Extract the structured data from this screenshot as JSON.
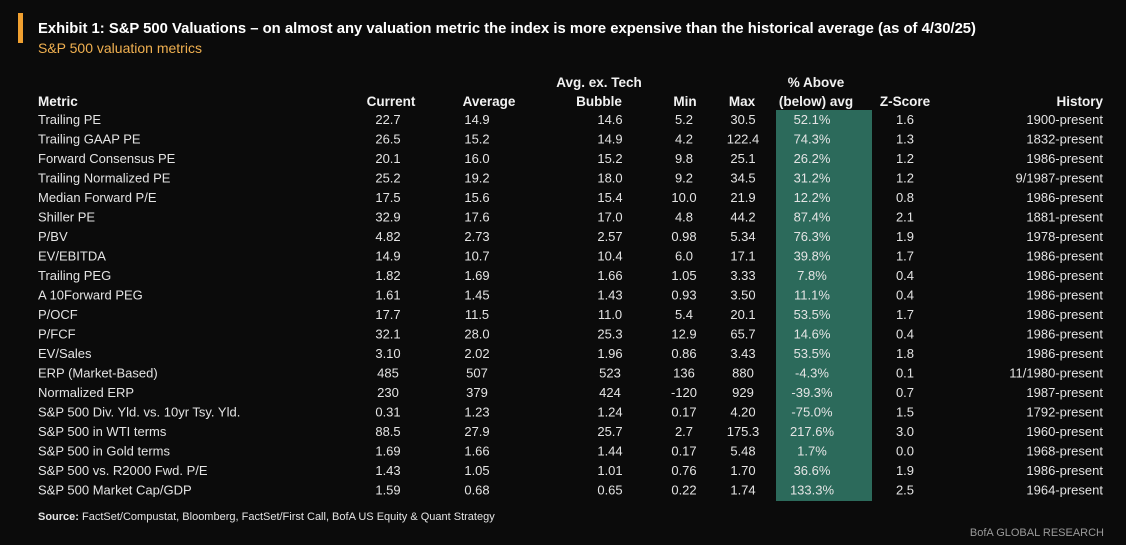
{
  "header": {
    "title": "Exhibit 1: S&P 500 Valuations – on almost any valuation metric the index is more expensive than the historical average (as of 4/30/25)",
    "subtitle": "S&P 500 valuation metrics"
  },
  "table": {
    "columns": [
      [
        "Metric"
      ],
      [
        "Current"
      ],
      [
        "Average"
      ],
      [
        "Avg. ex. Tech",
        "Bubble"
      ],
      [
        "Min"
      ],
      [
        "Max"
      ],
      [
        "% Above",
        "(below) avg"
      ],
      [
        "Z-Score"
      ],
      [
        "History"
      ]
    ],
    "rows": [
      [
        "Trailing PE",
        "22.7",
        "14.9",
        "14.6",
        "5.2",
        "30.5",
        "52.1%",
        "1.6",
        "1900-present"
      ],
      [
        "Trailing GAAP PE",
        "26.5",
        "15.2",
        "14.9",
        "4.2",
        "122.4",
        "74.3%",
        "1.3",
        "1832-present"
      ],
      [
        "Forward Consensus PE",
        "20.1",
        "16.0",
        "15.2",
        "9.8",
        "25.1",
        "26.2%",
        "1.2",
        "1986-present"
      ],
      [
        "Trailing Normalized PE",
        "25.2",
        "19.2",
        "18.0",
        "9.2",
        "34.5",
        "31.2%",
        "1.2",
        "9/1987-present"
      ],
      [
        "Median Forward P/E",
        "17.5",
        "15.6",
        "15.4",
        "10.0",
        "21.9",
        "12.2%",
        "0.8",
        "1986-present"
      ],
      [
        "Shiller PE",
        "32.9",
        "17.6",
        "17.0",
        "4.8",
        "44.2",
        "87.4%",
        "2.1",
        "1881-present"
      ],
      [
        "P/BV",
        "4.82",
        "2.73",
        "2.57",
        "0.98",
        "5.34",
        "76.3%",
        "1.9",
        "1978-present"
      ],
      [
        "EV/EBITDA",
        "14.9",
        "10.7",
        "10.4",
        "6.0",
        "17.1",
        "39.8%",
        "1.7",
        "1986-present"
      ],
      [
        "Trailing PEG",
        "1.82",
        "1.69",
        "1.66",
        "1.05",
        "3.33",
        "7.8%",
        "0.4",
        "1986-present"
      ],
      [
        "A 10Forward PEG",
        "1.61",
        "1.45",
        "1.43",
        "0.93",
        "3.50",
        "11.1%",
        "0.4",
        "1986-present"
      ],
      [
        "P/OCF",
        "17.7",
        "11.5",
        "11.0",
        "5.4",
        "20.1",
        "53.5%",
        "1.7",
        "1986-present"
      ],
      [
        "P/FCF",
        "32.1",
        "28.0",
        "25.3",
        "12.9",
        "65.7",
        "14.6%",
        "0.4",
        "1986-present"
      ],
      [
        "EV/Sales",
        "3.10",
        "2.02",
        "1.96",
        "0.86",
        "3.43",
        "53.5%",
        "1.8",
        "1986-present"
      ],
      [
        "ERP (Market-Based)",
        "485",
        "507",
        "523",
        "136",
        "880",
        "-4.3%",
        "0.1",
        "11/1980-present"
      ],
      [
        "Normalized ERP",
        "230",
        "379",
        "424",
        "-120",
        "929",
        "-39.3%",
        "0.7",
        "1987-present"
      ],
      [
        "S&P 500 Div. Yld. vs. 10yr Tsy. Yld.",
        "0.31",
        "1.23",
        "1.24",
        "0.17",
        "4.20",
        "-75.0%",
        "1.5",
        "1792-present"
      ],
      [
        "S&P 500 in WTI terms",
        "88.5",
        "27.9",
        "25.7",
        "2.7",
        "175.3",
        "217.6%",
        "3.0",
        "1960-present"
      ],
      [
        "S&P 500 in Gold terms",
        "1.69",
        "1.66",
        "1.44",
        "0.17",
        "5.48",
        "1.7%",
        "0.0",
        "1968-present"
      ],
      [
        "S&P 500 vs. R2000 Fwd. P/E",
        "1.43",
        "1.05",
        "1.01",
        "0.76",
        "1.70",
        "36.6%",
        "1.9",
        "1986-present"
      ],
      [
        "S&P 500 Market Cap/GDP",
        "1.59",
        "0.68",
        "0.65",
        "0.22",
        "1.74",
        "133.3%",
        "2.5",
        "1964-present"
      ]
    ]
  },
  "source": {
    "label": "Source:",
    "text": "FactSet/Compustat, Bloomberg, FactSet/First Call, BofA US Equity & Quant Strategy"
  },
  "footer": "BofA GLOBAL RESEARCH"
}
